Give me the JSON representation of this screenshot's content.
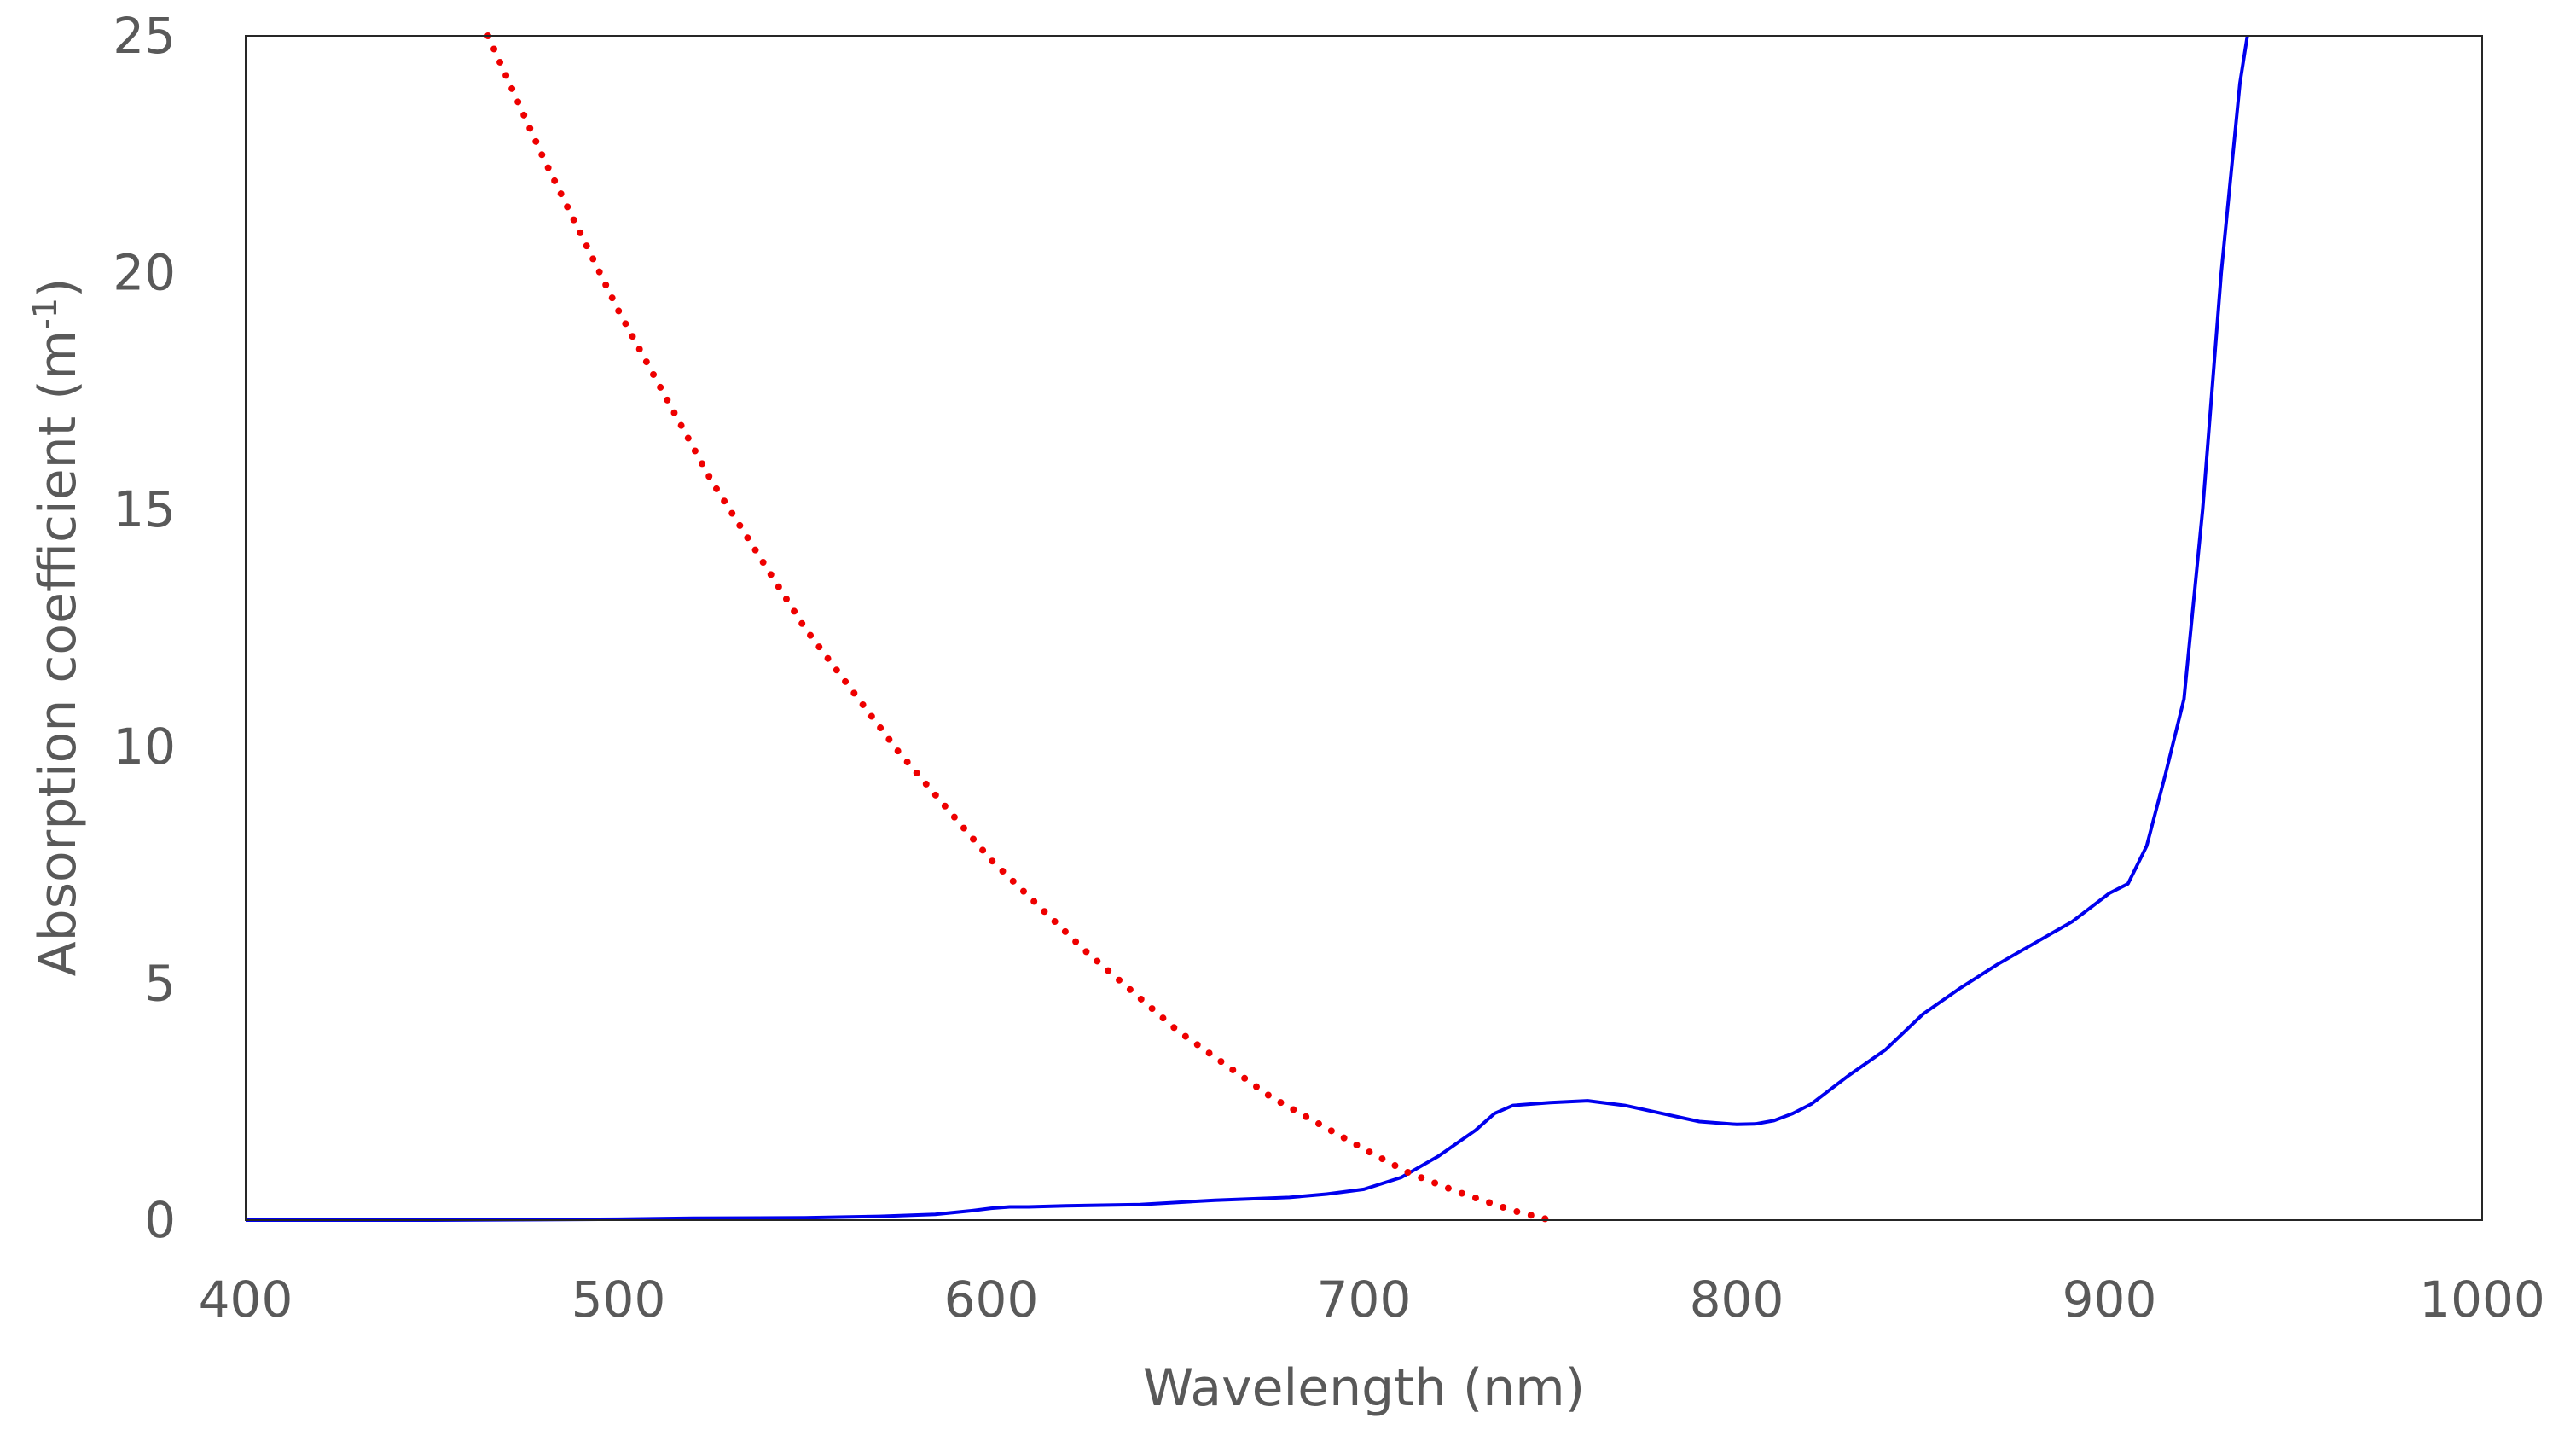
{
  "chart_data": {
    "type": "line",
    "xlabel": "Wavelength (nm)",
    "ylabel": {
      "main": "Absorption coefficient (m",
      "sup": "-1",
      "close": ")"
    },
    "xlim": [
      400,
      1000
    ],
    "ylim": [
      0,
      25
    ],
    "xticks": [
      400,
      500,
      600,
      700,
      800,
      900,
      1000
    ],
    "yticks": [
      0,
      5,
      10,
      15,
      20,
      25
    ],
    "grid": false,
    "legend": "none",
    "series": [
      {
        "style": "solid",
        "color": "#0000ee",
        "x": [
          400,
          450,
          500,
          520,
          550,
          570,
          585,
          595,
          600,
          605,
          610,
          620,
          640,
          660,
          680,
          690,
          700,
          710,
          720,
          730,
          735,
          740,
          750,
          760,
          770,
          780,
          790,
          800,
          805,
          810,
          815,
          820,
          825,
          830,
          840,
          850,
          860,
          870,
          880,
          890,
          900,
          905,
          910,
          915,
          920,
          925,
          930,
          935,
          937
        ],
        "y": [
          0,
          0,
          0.02,
          0.04,
          0.05,
          0.08,
          0.12,
          0.2,
          0.25,
          0.28,
          0.28,
          0.3,
          0.33,
          0.42,
          0.48,
          0.55,
          0.65,
          0.9,
          1.35,
          1.9,
          2.25,
          2.42,
          2.48,
          2.52,
          2.42,
          2.25,
          2.08,
          2.02,
          2.03,
          2.1,
          2.25,
          2.45,
          2.75,
          3.05,
          3.6,
          4.35,
          4.9,
          5.4,
          5.85,
          6.3,
          6.9,
          7.1,
          7.9,
          9.4,
          11.0,
          15.0,
          20.0,
          24.0,
          25.0
        ]
      },
      {
        "style": "dotted",
        "color": "#ee0000",
        "x": [
          465,
          480,
          500,
          525,
          550,
          575,
          600,
          625,
          650,
          675,
          700,
          712,
          725,
          740,
          750
        ],
        "y": [
          25,
          22.4,
          19.2,
          15.6,
          12.5,
          9.9,
          7.6,
          5.7,
          4.0,
          2.6,
          1.5,
          1.0,
          0.6,
          0.2,
          0.0
        ]
      }
    ]
  }
}
